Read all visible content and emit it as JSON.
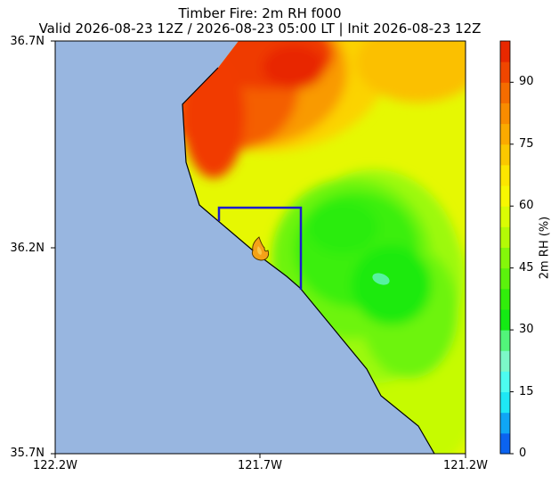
{
  "title_line1": "Timber Fire: 2m RH f000",
  "title_line2": "Valid 2026-08-23 12Z / 2026-08-23 05:00 LT | Init 2026-08-23 12Z",
  "lat_labels": [
    "36.7N",
    "36.2N",
    "35.7N"
  ],
  "lon_labels": [
    "122.2W",
    "121.7W",
    "121.2W"
  ],
  "colorbar": {
    "label": "2m RH (%)",
    "ticks": [
      "0",
      "15",
      "30",
      "45",
      "60",
      "75",
      "90"
    ],
    "range": [
      0,
      100
    ],
    "colors": [
      "#0b63f0",
      "#0fa6f5",
      "#1ee8f5",
      "#4dfcf0",
      "#7cf8c8",
      "#52f57a",
      "#14ea14",
      "#31ee0b",
      "#5bf20c",
      "#84f70a",
      "#b4fa06",
      "#dafc04",
      "#f8f701",
      "#fde600",
      "#fbc800",
      "#fbaa00",
      "#f98c00",
      "#f56c00",
      "#f04600",
      "#e82800"
    ]
  },
  "map": {
    "ocean_color": "#98b6e0",
    "extent": {
      "lon": [
        -122.2,
        -121.2
      ],
      "lat": [
        35.7,
        36.7
      ]
    },
    "fire_marker": "fire-icon",
    "domain_box_color": "#1c1ccc"
  }
}
